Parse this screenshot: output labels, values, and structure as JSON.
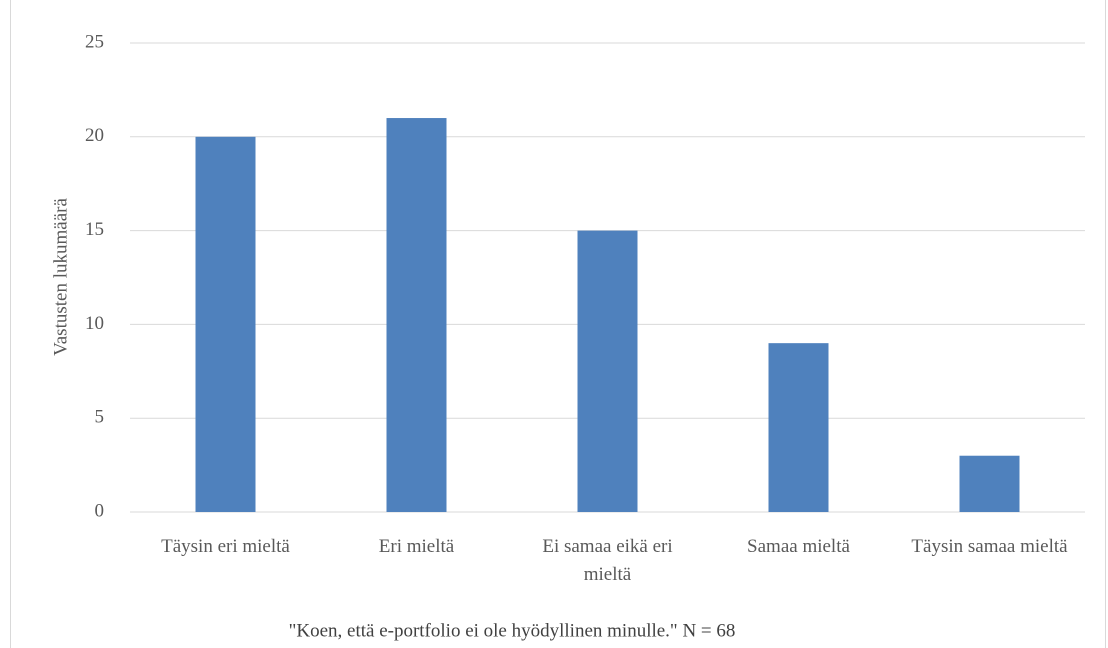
{
  "chart_data": {
    "type": "bar",
    "y_label": "Vastusten lukumäärä",
    "caption": "\"Koen, että e-portfolio ei ole hyödyllinen minulle.\" N = 68",
    "categories": [
      "Täysin eri mieltä",
      "Eri mieltä",
      "Ei samaa eikä eri mieltä",
      "Samaa mieltä",
      "Täysin samaa mieltä"
    ],
    "values": [
      20,
      21,
      15,
      9,
      3
    ],
    "color": "#4f81bd",
    "ylim": [
      0,
      25
    ],
    "yticks": [
      0,
      5,
      10,
      15,
      20,
      25
    ],
    "grid": true
  }
}
